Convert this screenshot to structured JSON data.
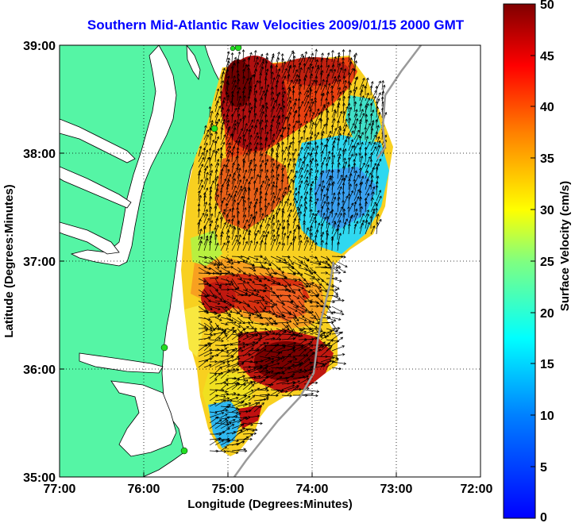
{
  "title": "Southern Mid-Atlantic Raw Velocities 2009/01/15 2000 GMT",
  "xlabel": "Longitude (Degrees:Minutes)",
  "ylabel": "Latitude (Degrees:Minutes)",
  "x_ticks": [
    "77:00",
    "76:00",
    "75:00",
    "74:00",
    "73:00",
    "72:00"
  ],
  "y_ticks": [
    "39:00",
    "38:00",
    "37:00",
    "36:00",
    "35:00"
  ],
  "colorbar": {
    "label": "Surface Velocity (cm/s)",
    "ticks": [
      "50",
      "45",
      "40",
      "35",
      "30",
      "25",
      "20",
      "15",
      "10",
      "5",
      "0"
    ],
    "range": [
      0,
      50
    ],
    "colormap": [
      "#0000ff",
      "#00ffff",
      "#ffff00",
      "#ff0000",
      "#800000"
    ]
  },
  "colors": {
    "land": "#55f5a5",
    "water": "#ffffff",
    "title": "#0000ff",
    "vector": "#000000",
    "station": "#22dd22"
  },
  "map": {
    "lon_range": [
      -77,
      -72
    ],
    "lat_range": [
      35,
      39
    ],
    "grid": true
  }
}
